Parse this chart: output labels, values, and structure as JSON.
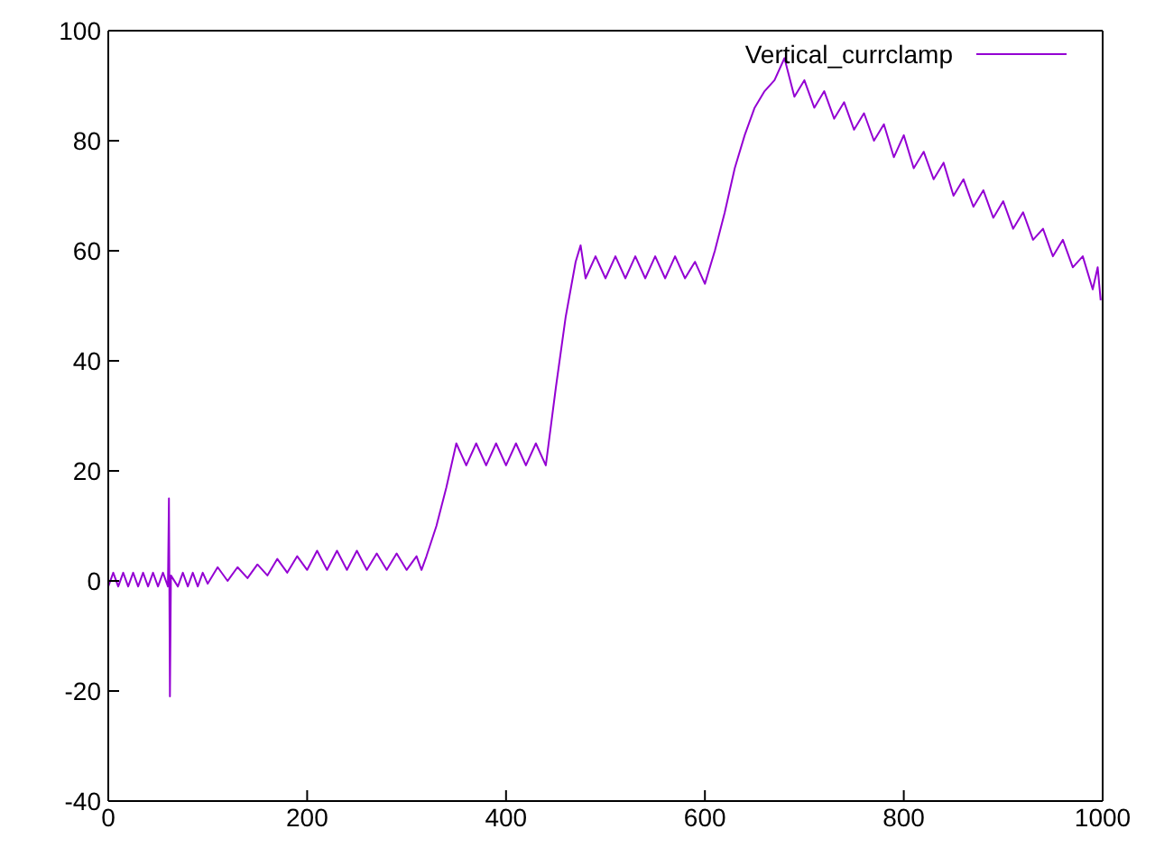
{
  "chart_data": {
    "type": "line",
    "x": [
      0,
      5,
      10,
      15,
      20,
      25,
      30,
      35,
      40,
      45,
      50,
      55,
      60,
      61,
      62,
      63,
      70,
      75,
      80,
      85,
      90,
      95,
      100,
      110,
      120,
      130,
      140,
      150,
      160,
      170,
      180,
      190,
      200,
      210,
      220,
      230,
      240,
      250,
      260,
      270,
      280,
      290,
      300,
      310,
      315,
      320,
      330,
      340,
      350,
      360,
      370,
      380,
      390,
      400,
      410,
      420,
      430,
      440,
      450,
      460,
      470,
      475,
      480,
      490,
      500,
      510,
      520,
      530,
      540,
      550,
      560,
      570,
      580,
      590,
      600,
      610,
      620,
      630,
      640,
      650,
      660,
      670,
      680,
      690,
      700,
      710,
      720,
      730,
      740,
      750,
      760,
      770,
      780,
      790,
      800,
      810,
      820,
      830,
      840,
      850,
      860,
      870,
      880,
      890,
      900,
      910,
      920,
      930,
      940,
      950,
      960,
      970,
      980,
      990,
      995,
      998
    ],
    "series": [
      {
        "name": "Vertical_currclamp",
        "color": "#9400d3",
        "values": [
          -1,
          1.5,
          -1,
          1.5,
          -1,
          1.5,
          -1,
          1.5,
          -1,
          1.5,
          -1,
          1.5,
          -1,
          15,
          -21,
          1,
          -1,
          1.5,
          -1,
          1.5,
          -1,
          1.5,
          -0.5,
          2.5,
          0,
          2.5,
          0.5,
          3,
          1,
          4,
          1.5,
          4.5,
          2,
          5.5,
          2,
          5.5,
          2,
          5.5,
          2,
          5,
          2,
          5,
          2,
          4.5,
          2,
          4.5,
          10,
          17,
          25,
          21,
          25,
          21,
          25,
          21,
          25,
          21,
          25,
          21,
          35,
          48,
          58,
          61,
          55,
          59,
          55,
          59,
          55,
          59,
          55,
          59,
          55,
          59,
          55,
          58,
          54,
          60,
          67,
          75,
          81,
          86,
          89,
          91,
          95,
          88,
          91,
          86,
          89,
          84,
          87,
          82,
          85,
          80,
          83,
          77,
          81,
          75,
          78,
          73,
          76,
          70,
          73,
          68,
          71,
          66,
          69,
          64,
          67,
          62,
          64,
          59,
          62,
          57,
          59,
          53,
          57,
          51
        ]
      }
    ],
    "xlim": [
      0,
      1000
    ],
    "xticks": [
      0,
      200,
      400,
      600,
      800,
      1000
    ],
    "ylim": [
      -40,
      100
    ],
    "yticks": [
      -40,
      -20,
      0,
      20,
      40,
      60,
      80,
      100
    ],
    "grid": false,
    "legend": "top right",
    "line_style": "solid",
    "marker": "none"
  }
}
